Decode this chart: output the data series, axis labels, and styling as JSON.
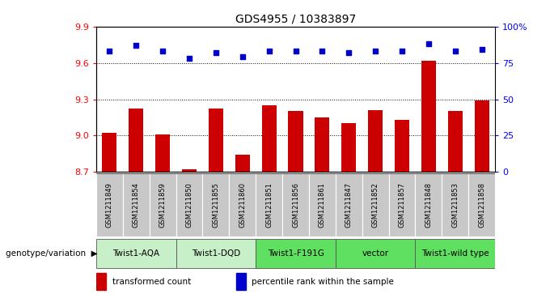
{
  "title": "GDS4955 / 10383897",
  "samples": [
    "GSM1211849",
    "GSM1211854",
    "GSM1211859",
    "GSM1211850",
    "GSM1211855",
    "GSM1211860",
    "GSM1211851",
    "GSM1211856",
    "GSM1211861",
    "GSM1211847",
    "GSM1211852",
    "GSM1211857",
    "GSM1211848",
    "GSM1211853",
    "GSM1211858"
  ],
  "bar_values": [
    9.02,
    9.22,
    9.01,
    8.72,
    9.22,
    8.84,
    9.25,
    9.2,
    9.15,
    9.1,
    9.21,
    9.13,
    9.62,
    9.2,
    9.29
  ],
  "dot_values": [
    83,
    87,
    83,
    78,
    82,
    79,
    83,
    83,
    83,
    82,
    83,
    83,
    88,
    83,
    84
  ],
  "groups": [
    {
      "label": "Twist1-AQA",
      "indices": [
        0,
        1,
        2
      ],
      "color": "#c8f0c8"
    },
    {
      "label": "Twist1-DQD",
      "indices": [
        3,
        4,
        5
      ],
      "color": "#c8f0c8"
    },
    {
      "label": "Twist1-F191G",
      "indices": [
        6,
        7,
        8
      ],
      "color": "#60e060"
    },
    {
      "label": "vector",
      "indices": [
        9,
        10,
        11
      ],
      "color": "#60e060"
    },
    {
      "label": "Twist1-wild type",
      "indices": [
        12,
        13,
        14
      ],
      "color": "#60e060"
    }
  ],
  "ylim_left": [
    8.7,
    9.9
  ],
  "ylim_right": [
    0,
    100
  ],
  "yticks_left": [
    8.7,
    9.0,
    9.3,
    9.6,
    9.9
  ],
  "yticks_right": [
    0,
    25,
    50,
    75,
    100
  ],
  "bar_color": "#cc0000",
  "dot_color": "#0000cc",
  "legend_bar_label": "transformed count",
  "legend_dot_label": "percentile rank within the sample",
  "genotype_label": "genotype/variation",
  "background_color": "#ffffff",
  "sample_bg_color": "#c8c8c8",
  "title_fontsize": 10
}
